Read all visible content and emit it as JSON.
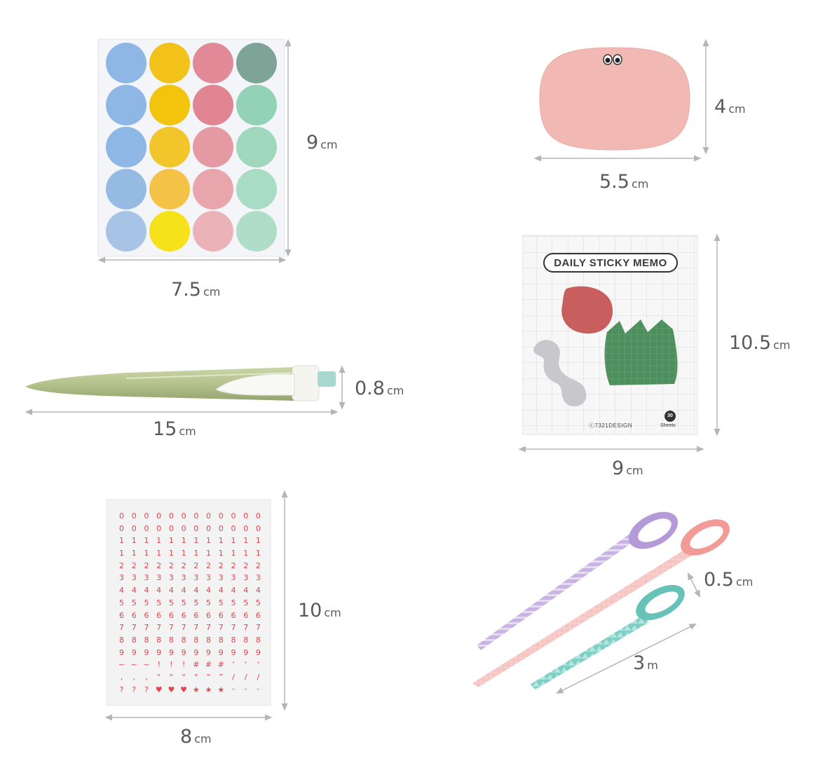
{
  "colors": {
    "arrow": "#b5b5b5",
    "dim_text": "#5a5a5a",
    "number_sticker_red": "#e0464a",
    "memo_text": "#3a3a3a"
  },
  "dot_stickers": {
    "columns": [
      [
        "#8fb7e6",
        "#8fb7e6",
        "#8fb7e6",
        "#96bbe3",
        "#a7c3e6"
      ],
      [
        "#f2c21b",
        "#f2c40c",
        "#f2c52a",
        "#f5c248",
        "#f6e21a"
      ],
      [
        "#e28a97",
        "#e28592",
        "#e59aa3",
        "#e8a5ac",
        "#ebb3b7"
      ],
      [
        "#7ea497",
        "#94d2b8",
        "#9fd8bd",
        "#a9dcc4",
        "#b0ddc7"
      ]
    ],
    "width": {
      "value": "7.5",
      "unit": "cm"
    },
    "height": {
      "value": "9",
      "unit": "cm"
    }
  },
  "pink_memo": {
    "color": "#f2b9b4",
    "width": {
      "value": "5.5",
      "unit": "cm"
    },
    "height": {
      "value": "4",
      "unit": "cm"
    }
  },
  "pen": {
    "length": {
      "value": "15",
      "unit": "cm"
    },
    "thickness": {
      "value": "0.8",
      "unit": "cm"
    }
  },
  "sticky_memo": {
    "title": "DAILY STICKY MEMO",
    "brand": "ⓒ7321DESIGN",
    "count": "30",
    "count_label": "Sheets",
    "width": {
      "value": "9",
      "unit": "cm"
    },
    "height": {
      "value": "10.5",
      "unit": "cm"
    }
  },
  "number_stickers": {
    "rows": [
      [
        "0",
        "0",
        "0",
        "0",
        "0",
        "0",
        "0",
        "0",
        "0",
        "0",
        "0",
        "0"
      ],
      [
        "0",
        "0",
        "0",
        "0",
        "0",
        "0",
        "0",
        "0",
        "0",
        "0",
        "0",
        "0"
      ],
      [
        "1",
        "1",
        "1",
        "1",
        "1",
        "1",
        "1",
        "1",
        "1",
        "1",
        "1",
        "1"
      ],
      [
        "1",
        "1",
        "1",
        "1",
        "1",
        "1",
        "1",
        "1",
        "1",
        "1",
        "1",
        "1"
      ],
      [
        "2",
        "2",
        "2",
        "2",
        "2",
        "2",
        "2",
        "2",
        "2",
        "2",
        "2",
        "2"
      ],
      [
        "3",
        "3",
        "3",
        "3",
        "3",
        "3",
        "3",
        "3",
        "3",
        "3",
        "3",
        "3"
      ],
      [
        "4",
        "4",
        "4",
        "4",
        "4",
        "4",
        "4",
        "4",
        "4",
        "4",
        "4",
        "4"
      ],
      [
        "5",
        "5",
        "5",
        "5",
        "5",
        "5",
        "5",
        "5",
        "5",
        "5",
        "5",
        "5"
      ],
      [
        "6",
        "6",
        "6",
        "6",
        "6",
        "6",
        "6",
        "6",
        "6",
        "6",
        "6",
        "6"
      ],
      [
        "7",
        "7",
        "7",
        "7",
        "7",
        "7",
        "7",
        "7",
        "7",
        "7",
        "7",
        "7"
      ],
      [
        "8",
        "8",
        "8",
        "8",
        "8",
        "8",
        "8",
        "8",
        "8",
        "8",
        "8",
        "8"
      ],
      [
        "9",
        "9",
        "9",
        "9",
        "9",
        "9",
        "9",
        "9",
        "9",
        "9",
        "9",
        "9"
      ],
      [
        "~",
        "~",
        "~",
        "!",
        "!",
        "!",
        "#",
        "#",
        "#",
        "‘",
        "‘",
        "‘"
      ],
      [
        ",",
        ",",
        ",",
        "“",
        "“",
        "“",
        "”",
        "”",
        "”",
        "/",
        "/",
        "/"
      ],
      [
        "?",
        "?",
        "?",
        "♥",
        "♥",
        "♥",
        "★",
        "★",
        "★",
        "ᵕ",
        "ᵕ",
        "ᵕ"
      ]
    ],
    "width": {
      "value": "8",
      "unit": "cm"
    },
    "height": {
      "value": "10",
      "unit": "cm"
    }
  },
  "washi_tape": {
    "width": {
      "value": "0.5",
      "unit": "cm"
    },
    "length": {
      "value": "3",
      "unit": "m"
    }
  }
}
